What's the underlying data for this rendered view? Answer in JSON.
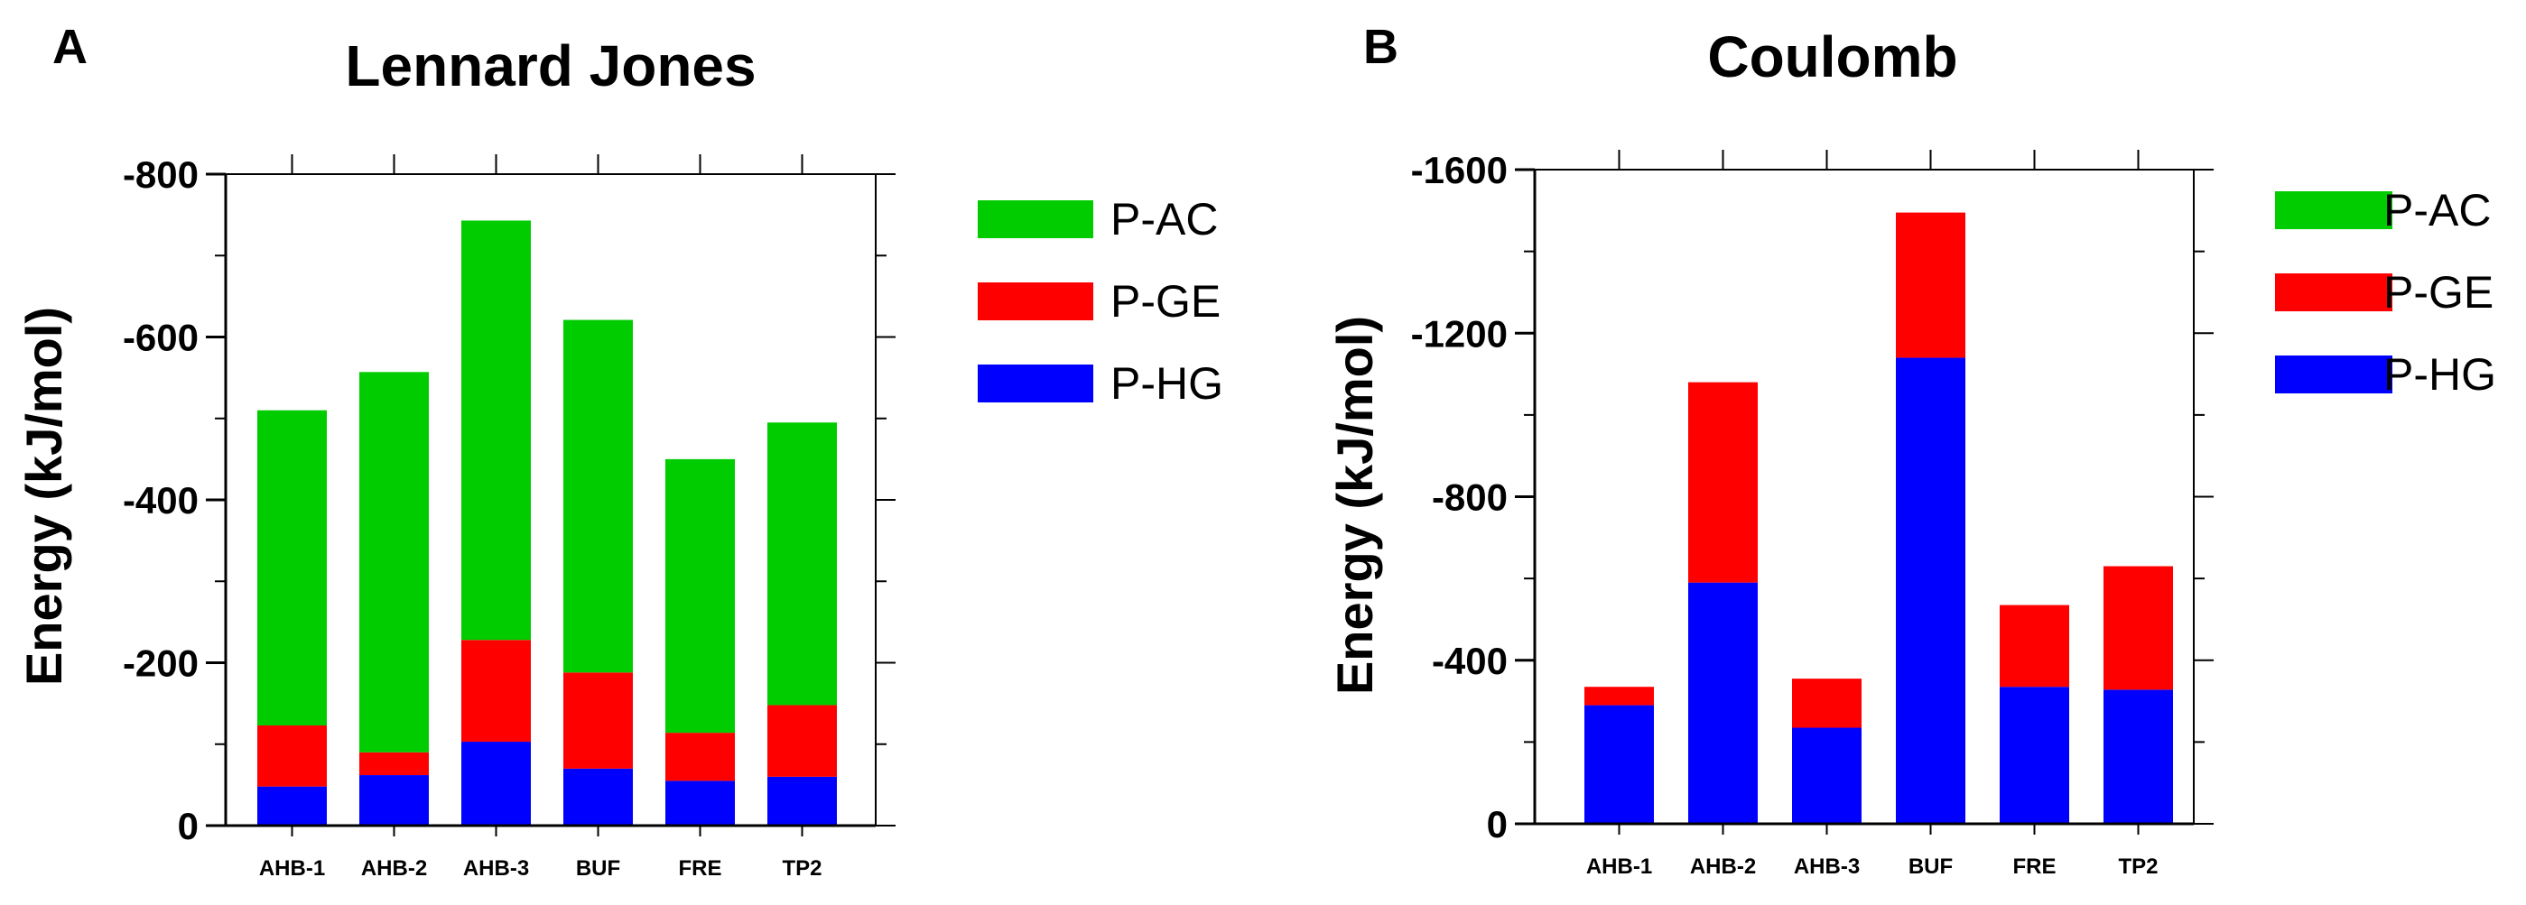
{
  "colors": {
    "P-AC": "#00cc00",
    "P-GE": "#ff0000",
    "P-HG": "#0000ff"
  },
  "chart_data": [
    {
      "panel": "A",
      "type": "bar",
      "stacked": true,
      "title": "Lennard Jones",
      "xlabel": "",
      "ylabel": "Energy (kJ/mol)",
      "ylim": [
        0,
        -800
      ],
      "yticks": [
        0,
        -200,
        -400,
        -600,
        -800
      ],
      "categories": [
        "AHB-1",
        "AHB-2",
        "AHB-3",
        "BUF",
        "FRE",
        "TP2"
      ],
      "series": [
        {
          "name": "P-HG",
          "values": [
            -48,
            -62,
            -103,
            -70,
            -55,
            -60
          ]
        },
        {
          "name": "P-GE",
          "values": [
            -75,
            -28,
            -125,
            -118,
            -59,
            -88
          ]
        },
        {
          "name": "P-AC",
          "values": [
            -387,
            -467,
            -515,
            -433,
            -336,
            -347
          ]
        }
      ],
      "legend": [
        "P-AC",
        "P-GE",
        "P-HG"
      ],
      "legend_position": "right"
    },
    {
      "panel": "B",
      "type": "bar",
      "stacked": true,
      "title": "Coulomb",
      "xlabel": "",
      "ylabel": "Energy (kJ/mol)",
      "ylim": [
        0,
        -1600
      ],
      "yticks": [
        0,
        -400,
        -800,
        -1200,
        -1600
      ],
      "categories": [
        "AHB-1",
        "AHB-2",
        "AHB-3",
        "BUF",
        "FRE",
        "TP2"
      ],
      "series": [
        {
          "name": "P-HG",
          "values": [
            -290,
            -590,
            -235,
            -1140,
            -335,
            -328
          ]
        },
        {
          "name": "P-GE",
          "values": [
            -45,
            -490,
            -120,
            -355,
            -200,
            -302
          ]
        },
        {
          "name": "P-AC",
          "values": [
            0,
            0,
            0,
            0,
            0,
            0
          ]
        }
      ],
      "legend": [
        "P-AC",
        "P-GE",
        "P-HG"
      ],
      "legend_position": "right"
    }
  ]
}
